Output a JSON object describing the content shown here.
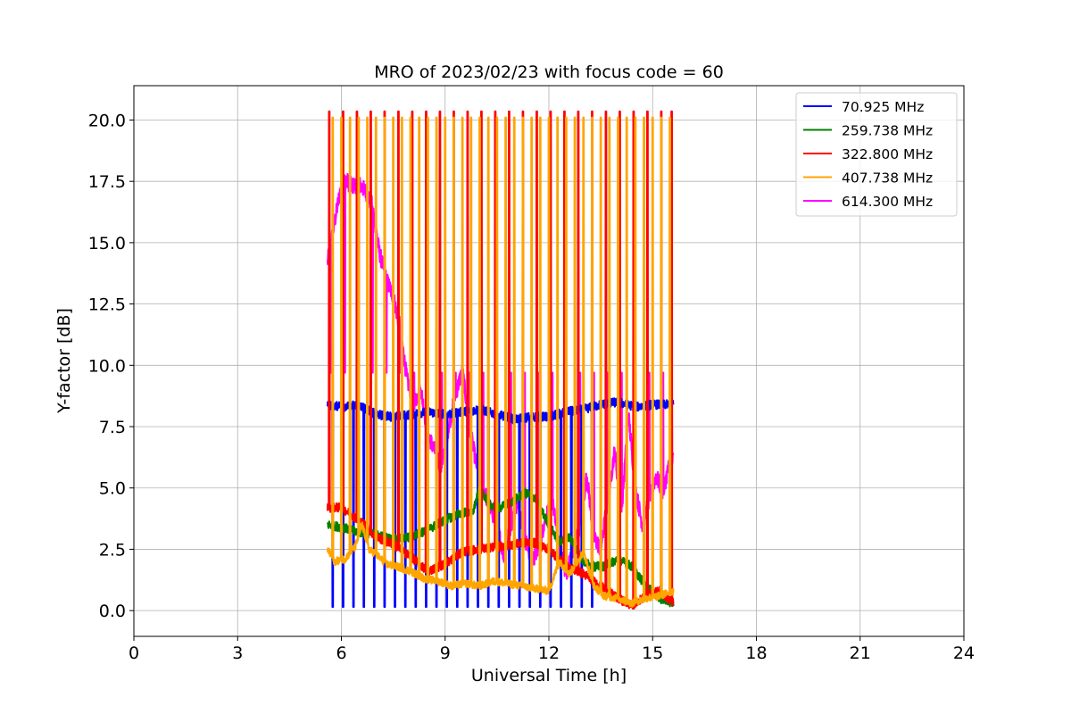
{
  "chart_data": {
    "type": "line",
    "title": "MRO of 2023/02/23 with focus code = 60",
    "xlabel": "Universal Time [h]",
    "ylabel": "Y-factor [dB]",
    "xlim": [
      0,
      24
    ],
    "ylim": [
      -1.05,
      21.4
    ],
    "xticks": [
      0,
      3,
      6,
      9,
      12,
      15,
      18,
      21,
      24
    ],
    "yticks": [
      0.0,
      2.5,
      5.0,
      7.5,
      10.0,
      12.5,
      15.0,
      17.5,
      20.0
    ],
    "grid": true,
    "legend_position": "upper right",
    "series": [
      {
        "name": " 70.925 MHz",
        "color": "#0000ff",
        "baseline": [
          [
            5.6,
            8.4
          ],
          [
            6.0,
            8.3
          ],
          [
            6.5,
            8.4
          ],
          [
            7.0,
            8.0
          ],
          [
            7.5,
            7.9
          ],
          [
            8.0,
            8.0
          ],
          [
            8.5,
            8.1
          ],
          [
            9.0,
            8.0
          ],
          [
            9.5,
            8.1
          ],
          [
            10.0,
            8.2
          ],
          [
            10.5,
            8.0
          ],
          [
            11.0,
            7.8
          ],
          [
            11.5,
            7.9
          ],
          [
            12.0,
            7.9
          ],
          [
            12.5,
            8.1
          ],
          [
            13.0,
            8.2
          ],
          [
            13.5,
            8.4
          ],
          [
            14.0,
            8.5
          ],
          [
            14.5,
            8.3
          ],
          [
            15.0,
            8.4
          ],
          [
            15.6,
            8.4
          ]
        ],
        "dip_to": 0.15,
        "dip_times": [
          5.75,
          6.05,
          6.35,
          6.65,
          6.95,
          7.25,
          7.55,
          7.85,
          8.15,
          8.45,
          8.75,
          9.05,
          9.35,
          9.65,
          9.95,
          10.25,
          10.55,
          10.85,
          11.15,
          11.45,
          11.75,
          12.05,
          12.35,
          12.65,
          12.95,
          13.25
        ]
      },
      {
        "name": " 259.738 MHz",
        "color": "#008000",
        "baseline": [
          [
            5.6,
            3.5
          ],
          [
            6.0,
            3.4
          ],
          [
            6.5,
            3.2
          ],
          [
            7.0,
            3.1
          ],
          [
            7.5,
            2.9
          ],
          [
            8.0,
            3.0
          ],
          [
            8.5,
            3.3
          ],
          [
            9.0,
            3.7
          ],
          [
            9.5,
            4.0
          ],
          [
            9.8,
            4.0
          ],
          [
            10.0,
            5.0
          ],
          [
            10.3,
            4.3
          ],
          [
            10.6,
            4.2
          ],
          [
            11.0,
            4.5
          ],
          [
            11.3,
            4.8
          ],
          [
            11.6,
            4.6
          ],
          [
            12.0,
            3.5
          ],
          [
            12.3,
            2.8
          ],
          [
            12.6,
            3.0
          ],
          [
            13.0,
            2.0
          ],
          [
            13.3,
            1.8
          ],
          [
            13.6,
            1.8
          ],
          [
            14.0,
            2.1
          ],
          [
            14.4,
            1.8
          ],
          [
            14.8,
            1.0
          ],
          [
            15.2,
            0.5
          ],
          [
            15.6,
            0.3
          ]
        ]
      },
      {
        "name": " 322.800 MHz",
        "color": "#ff0000",
        "baseline": [
          [
            5.6,
            4.2
          ],
          [
            6.0,
            4.2
          ],
          [
            6.3,
            3.9
          ],
          [
            6.6,
            3.6
          ],
          [
            7.0,
            3.0
          ],
          [
            7.5,
            2.7
          ],
          [
            8.0,
            2.2
          ],
          [
            8.5,
            1.6
          ],
          [
            9.0,
            1.9
          ],
          [
            9.5,
            2.4
          ],
          [
            10.0,
            2.5
          ],
          [
            10.5,
            2.6
          ],
          [
            11.0,
            2.7
          ],
          [
            11.5,
            2.8
          ],
          [
            12.0,
            2.5
          ],
          [
            12.5,
            1.8
          ],
          [
            13.0,
            1.5
          ],
          [
            13.5,
            1.0
          ],
          [
            14.0,
            0.5
          ],
          [
            14.4,
            0.2
          ],
          [
            14.8,
            0.6
          ],
          [
            15.2,
            0.8
          ],
          [
            15.6,
            0.3
          ]
        ],
        "peak_to": 20.35,
        "peak_times": [
          5.65,
          6.05,
          6.45,
          6.85,
          7.25,
          7.65,
          8.05,
          8.45,
          8.85,
          9.25,
          9.65,
          10.05,
          10.45,
          10.85,
          11.25,
          11.65,
          12.05,
          12.45,
          12.85,
          13.25,
          13.65,
          14.05,
          14.45,
          14.85,
          15.25,
          15.55
        ]
      },
      {
        "name": " 407.738 MHz",
        "color": "#ffa500",
        "baseline": [
          [
            5.6,
            2.5
          ],
          [
            5.8,
            2.0
          ],
          [
            6.1,
            2.1
          ],
          [
            6.4,
            2.6
          ],
          [
            6.6,
            3.5
          ],
          [
            6.8,
            2.5
          ],
          [
            7.0,
            2.3
          ],
          [
            7.3,
            1.9
          ],
          [
            7.6,
            1.8
          ],
          [
            8.0,
            1.6
          ],
          [
            8.4,
            1.3
          ],
          [
            8.8,
            1.2
          ],
          [
            9.2,
            1.0
          ],
          [
            9.6,
            1.1
          ],
          [
            10.0,
            1.0
          ],
          [
            10.4,
            1.2
          ],
          [
            10.8,
            1.1
          ],
          [
            11.2,
            1.0
          ],
          [
            11.6,
            0.9
          ],
          [
            12.0,
            0.8
          ],
          [
            12.3,
            2.0
          ],
          [
            12.6,
            1.5
          ],
          [
            13.0,
            2.4
          ],
          [
            13.3,
            1.0
          ],
          [
            13.6,
            0.6
          ],
          [
            14.0,
            0.5
          ],
          [
            14.4,
            0.3
          ],
          [
            14.8,
            0.5
          ],
          [
            15.2,
            0.6
          ],
          [
            15.6,
            0.8
          ]
        ],
        "peak_to": 20.1,
        "peak_times": [
          5.75,
          6.0,
          6.25,
          6.5,
          6.75,
          7.0,
          7.25,
          7.5,
          7.75,
          8.0,
          8.25,
          8.5,
          8.75,
          9.0,
          9.25,
          9.5,
          9.75,
          10.0,
          10.25,
          10.5,
          10.75,
          11.0,
          11.25,
          11.5,
          11.75,
          12.0,
          12.25,
          12.5,
          12.75,
          13.0,
          13.25,
          13.5,
          13.75,
          14.0,
          14.25,
          14.5,
          14.75,
          15.0,
          15.25,
          15.5
        ]
      },
      {
        "name": " 614.300 MHz",
        "color": "#ff00ff",
        "baseline": [
          [
            5.6,
            14.2
          ],
          [
            5.8,
            15.8
          ],
          [
            5.95,
            17.0
          ],
          [
            6.1,
            17.6
          ],
          [
            6.3,
            17.3
          ],
          [
            6.5,
            17.4
          ],
          [
            6.7,
            17.1
          ],
          [
            6.9,
            16.5
          ],
          [
            7.1,
            14.6
          ],
          [
            7.3,
            13.5
          ],
          [
            7.5,
            12.8
          ],
          [
            7.7,
            11.5
          ],
          [
            7.9,
            9.4
          ],
          [
            8.1,
            8.5
          ],
          [
            8.3,
            9.0
          ],
          [
            8.5,
            7.2
          ],
          [
            8.7,
            6.5
          ],
          [
            8.9,
            5.8
          ],
          [
            9.1,
            7.5
          ],
          [
            9.3,
            8.8
          ],
          [
            9.5,
            9.8
          ],
          [
            9.7,
            7.5
          ],
          [
            9.9,
            6.0
          ],
          [
            10.1,
            5.0
          ],
          [
            10.3,
            4.2
          ],
          [
            10.5,
            3.5
          ],
          [
            10.7,
            2.2
          ],
          [
            10.9,
            3.5
          ],
          [
            11.1,
            4.5
          ],
          [
            11.3,
            3.0
          ],
          [
            11.5,
            2.0
          ],
          [
            11.7,
            2.5
          ],
          [
            11.9,
            3.8
          ],
          [
            12.1,
            4.5
          ],
          [
            12.3,
            2.5
          ],
          [
            12.5,
            1.5
          ],
          [
            12.7,
            2.5
          ],
          [
            12.9,
            3.5
          ],
          [
            13.1,
            5.5
          ],
          [
            13.3,
            3.0
          ],
          [
            13.5,
            2.5
          ],
          [
            13.7,
            4.5
          ],
          [
            13.9,
            6.5
          ],
          [
            14.1,
            4.0
          ],
          [
            14.3,
            8.0
          ],
          [
            14.5,
            5.0
          ],
          [
            14.7,
            3.5
          ],
          [
            14.9,
            4.5
          ],
          [
            15.1,
            5.5
          ],
          [
            15.3,
            4.8
          ],
          [
            15.45,
            5.8
          ],
          [
            15.6,
            6.2
          ]
        ],
        "peak_to": 9.7,
        "peak_times": [
          5.7,
          6.1,
          6.5,
          6.9,
          7.3,
          7.7,
          8.1,
          8.5,
          8.9,
          9.3,
          9.7,
          10.1,
          10.5,
          10.9,
          11.3,
          11.7,
          12.1,
          12.5,
          12.9,
          13.3,
          13.7,
          14.1,
          14.5,
          14.9,
          15.3,
          15.55
        ]
      }
    ]
  }
}
